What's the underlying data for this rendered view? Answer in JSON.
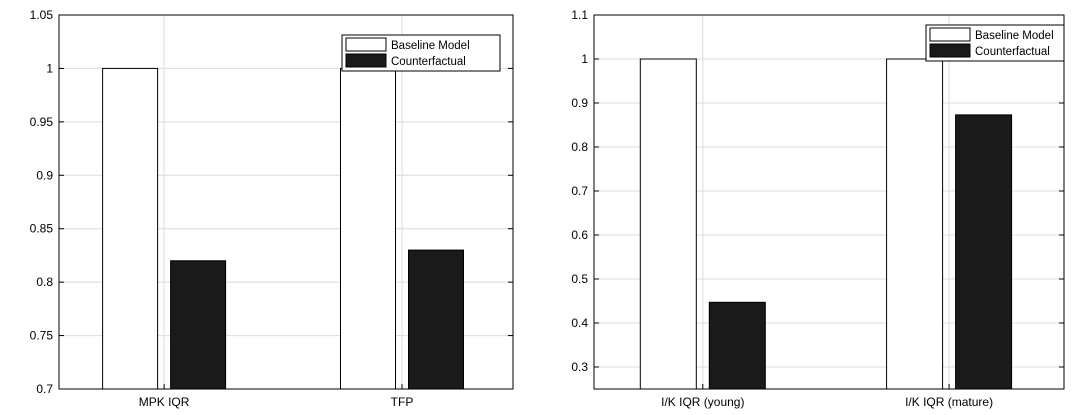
{
  "chart_data": [
    {
      "type": "bar",
      "categories": [
        "MPK IQR",
        "TFP"
      ],
      "series": [
        {
          "name": "Baseline Model",
          "values": [
            1.0,
            1.0
          ],
          "color": "#ffffff"
        },
        {
          "name": "Counterfactual",
          "values": [
            0.82,
            0.83
          ],
          "color": "#1a1a1a"
        }
      ],
      "ylim": [
        0.7,
        1.05
      ],
      "yticks": [
        "0.7",
        "0.75",
        "0.8",
        "0.85",
        "0.9",
        "0.95",
        "1",
        "1.05"
      ],
      "grid": true,
      "legend": "top-right"
    },
    {
      "type": "bar",
      "categories": [
        "I/K IQR (young)",
        "I/K IQR (mature)"
      ],
      "series": [
        {
          "name": "Baseline Model",
          "values": [
            1.0,
            1.0
          ],
          "color": "#ffffff"
        },
        {
          "name": "Counterfactual",
          "values": [
            0.447,
            0.873
          ],
          "color": "#1a1a1a"
        }
      ],
      "ylim": [
        0.25,
        1.1
      ],
      "yticks": [
        "0.3",
        "0.4",
        "0.5",
        "0.6",
        "0.7",
        "0.8",
        "0.9",
        "1",
        "1.1"
      ],
      "grid": true,
      "legend": "top-right"
    }
  ]
}
